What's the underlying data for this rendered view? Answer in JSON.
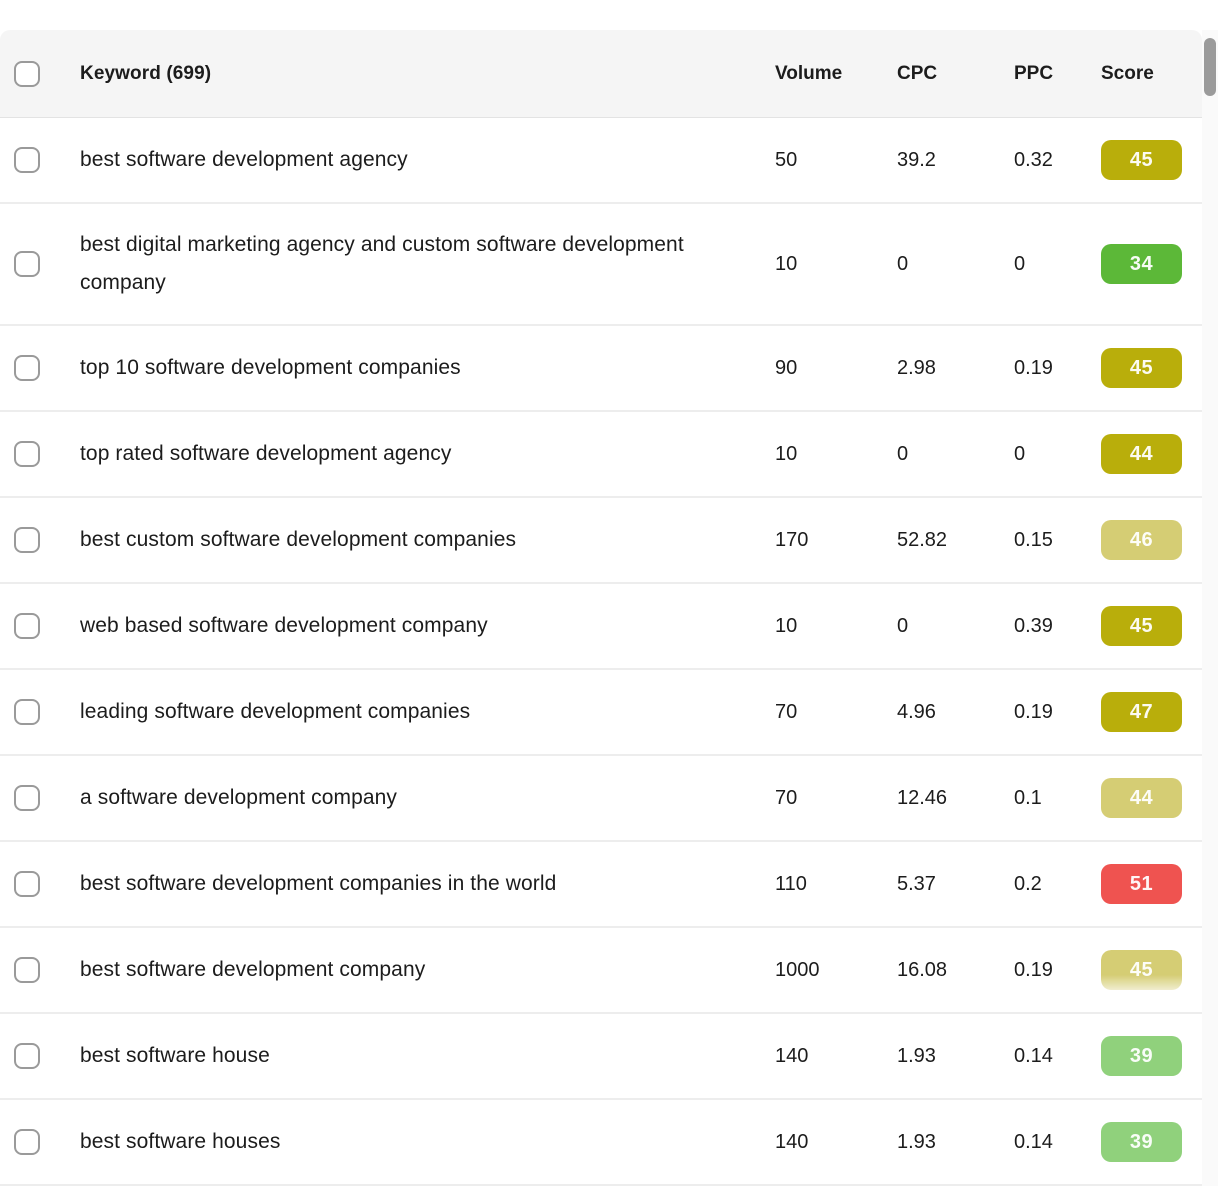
{
  "table": {
    "header": {
      "keyword_label": "Keyword (699)",
      "columns": [
        "Volume",
        "CPC",
        "PPC",
        "Score"
      ]
    },
    "score_colors": {
      "olive": "#b9ae0b",
      "khaki": "#d5cd74",
      "green": "#5cb838",
      "red": "#ef5350",
      "light_green": "#90d17c"
    },
    "rows": [
      {
        "keyword": "best software development agency",
        "volume": "50",
        "cpc": "39.2",
        "ppc": "0.32",
        "score": "45",
        "score_color": "olive",
        "faded": false
      },
      {
        "keyword": "best digital marketing agency and custom software development company",
        "volume": "10",
        "cpc": "0",
        "ppc": "0",
        "score": "34",
        "score_color": "green",
        "faded": false
      },
      {
        "keyword": "top 10 software development companies",
        "volume": "90",
        "cpc": "2.98",
        "ppc": "0.19",
        "score": "45",
        "score_color": "olive",
        "faded": false
      },
      {
        "keyword": "top rated software development agency",
        "volume": "10",
        "cpc": "0",
        "ppc": "0",
        "score": "44",
        "score_color": "olive",
        "faded": false
      },
      {
        "keyword": "best custom software development companies",
        "volume": "170",
        "cpc": "52.82",
        "ppc": "0.15",
        "score": "46",
        "score_color": "khaki",
        "faded": false
      },
      {
        "keyword": "web based software development company",
        "volume": "10",
        "cpc": "0",
        "ppc": "0.39",
        "score": "45",
        "score_color": "olive",
        "faded": false
      },
      {
        "keyword": "leading software development companies",
        "volume": "70",
        "cpc": "4.96",
        "ppc": "0.19",
        "score": "47",
        "score_color": "olive",
        "faded": false
      },
      {
        "keyword": "a software development company",
        "volume": "70",
        "cpc": "12.46",
        "ppc": "0.1",
        "score": "44",
        "score_color": "khaki",
        "faded": false
      },
      {
        "keyword": "best software development companies in the world",
        "volume": "110",
        "cpc": "5.37",
        "ppc": "0.2",
        "score": "51",
        "score_color": "red",
        "faded": false
      },
      {
        "keyword": "best software development company",
        "volume": "1000",
        "cpc": "16.08",
        "ppc": "0.19",
        "score": "45",
        "score_color": "khaki",
        "faded": true
      },
      {
        "keyword": "best software house",
        "volume": "140",
        "cpc": "1.93",
        "ppc": "0.14",
        "score": "39",
        "score_color": "light_green",
        "faded": false
      },
      {
        "keyword": "best software houses",
        "volume": "140",
        "cpc": "1.93",
        "ppc": "0.14",
        "score": "39",
        "score_color": "light_green",
        "faded": false
      }
    ]
  }
}
